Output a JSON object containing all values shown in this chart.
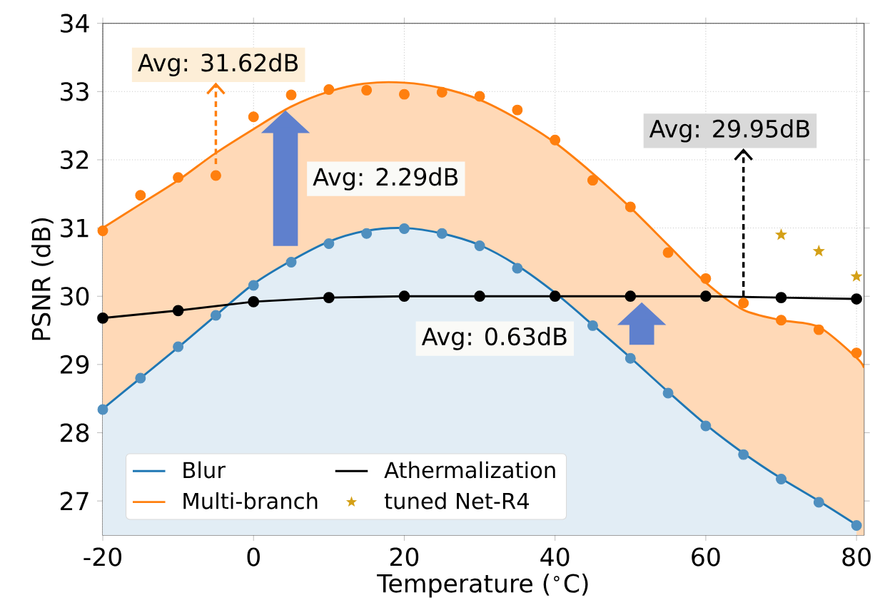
{
  "chart_data": {
    "type": "line",
    "xlabel": "Temperature ($^{∘}$C)",
    "ylabel": "PSNR (dB)",
    "xlim": [
      -20,
      81
    ],
    "ylim": [
      26.5,
      34
    ],
    "xticks": [
      -20,
      0,
      20,
      40,
      60,
      80
    ],
    "yticks": [
      27,
      28,
      29,
      30,
      31,
      32,
      33,
      34
    ],
    "grid": true,
    "legend": "bottom left",
    "series": [
      {
        "name": "Blur",
        "type": "area",
        "color": "#1f77b4",
        "marker": "none",
        "x": [
          -20,
          -15,
          -10,
          -5,
          0,
          5,
          10,
          15,
          20,
          25,
          30,
          35,
          40,
          45,
          50,
          55,
          60,
          65,
          70,
          75,
          80
        ],
        "values": [
          28.35,
          28.8,
          29.25,
          29.72,
          30.18,
          30.52,
          30.8,
          30.96,
          31.0,
          30.92,
          30.75,
          30.45,
          30.05,
          29.58,
          29.1,
          28.6,
          28.12,
          27.7,
          27.33,
          27.0,
          26.65
        ]
      },
      {
        "name": "Multi-branch",
        "type": "area",
        "color": "#ff7f0e",
        "marker": "none",
        "x": [
          -20,
          -15,
          -10,
          -5,
          0,
          5,
          10,
          15,
          20,
          25,
          30,
          35,
          40,
          45,
          50,
          55,
          60,
          65,
          70,
          75,
          80,
          81
        ],
        "values": [
          31.0,
          31.35,
          31.7,
          32.1,
          32.45,
          32.78,
          33.0,
          33.12,
          33.13,
          33.05,
          32.88,
          32.6,
          32.25,
          31.8,
          31.3,
          30.75,
          30.2,
          29.8,
          29.65,
          29.55,
          29.1,
          28.95
        ]
      },
      {
        "type": "scatter",
        "color": "#ff7f0e",
        "marker": "circle",
        "x": [
          -20,
          -15,
          -10,
          -5,
          0,
          5,
          10,
          15,
          20,
          25,
          30,
          35,
          40,
          45,
          50,
          55,
          60,
          65,
          70,
          75,
          80
        ],
        "values": [
          30.96,
          31.48,
          31.74,
          31.77,
          32.63,
          32.95,
          33.03,
          33.02,
          32.96,
          32.99,
          32.93,
          32.73,
          32.29,
          31.7,
          31.31,
          30.64,
          30.26,
          29.9,
          29.65,
          29.51,
          29.17
        ]
      },
      {
        "type": "scatter",
        "color": "#4f8fbf",
        "marker": "circle",
        "x": [
          -20,
          -15,
          -10,
          -5,
          0,
          5,
          10,
          15,
          20,
          25,
          30,
          35,
          40,
          45,
          50,
          55,
          60,
          65,
          70,
          75,
          80
        ],
        "values": [
          28.34,
          28.8,
          29.26,
          29.72,
          30.16,
          30.5,
          30.77,
          30.92,
          30.99,
          30.92,
          30.74,
          30.41,
          null,
          29.57,
          29.09,
          28.58,
          28.1,
          27.68,
          27.32,
          26.98,
          26.64
        ]
      },
      {
        "name": "Athermalization",
        "color": "#000000",
        "marker": "circle",
        "x": [
          -20,
          -10,
          0,
          10,
          20,
          30,
          40,
          50,
          60,
          70,
          80
        ],
        "values": [
          29.68,
          29.79,
          29.92,
          29.98,
          30.0,
          30.0,
          30.0,
          30.0,
          30.0,
          29.98,
          29.96
        ]
      },
      {
        "name": "tuned Net-R4",
        "type": "scatter",
        "color": "#d4a017",
        "marker": "star",
        "x": [
          70,
          75,
          80
        ],
        "values": [
          30.9,
          30.66,
          30.29
        ]
      }
    ],
    "annotations": [
      {
        "text": "Avg: 31.62dB",
        "x": -5,
        "y": 31.77
      },
      "Avg: 2.29dB",
      "Avg: 0.63dB",
      {
        "text": "Avg: 29.95dB",
        "x": 65,
        "y": 30.0
      }
    ]
  }
}
